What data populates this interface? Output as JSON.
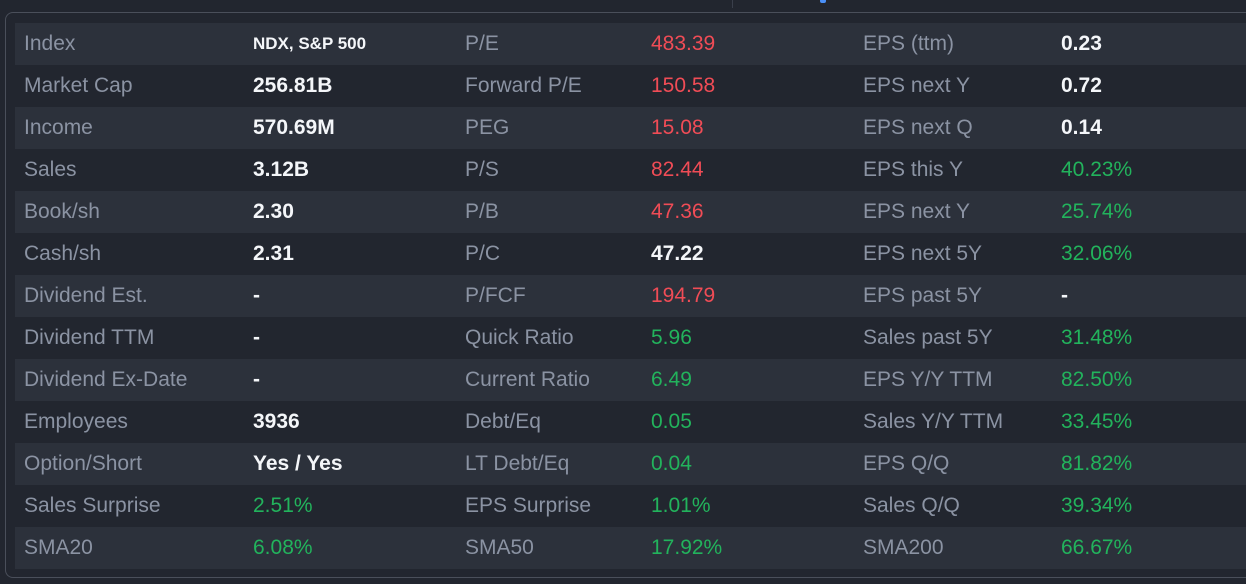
{
  "colors": {
    "negative": "#f04c56",
    "positive": "#22b35c",
    "neutral": "#f4f6f9",
    "label": "#8b93a3"
  },
  "rows": [
    [
      {
        "label": "Index",
        "value": "NDX, S&P 500",
        "tone": "white",
        "small": true
      },
      {
        "label": "P/E",
        "value": "483.39",
        "tone": "red"
      },
      {
        "label": "EPS (ttm)",
        "value": "0.23",
        "tone": "white"
      }
    ],
    [
      {
        "label": "Market Cap",
        "value": "256.81B",
        "tone": "white"
      },
      {
        "label": "Forward P/E",
        "value": "150.58",
        "tone": "red"
      },
      {
        "label": "EPS next Y",
        "value": "0.72",
        "tone": "white"
      }
    ],
    [
      {
        "label": "Income",
        "value": "570.69M",
        "tone": "white"
      },
      {
        "label": "PEG",
        "value": "15.08",
        "tone": "red"
      },
      {
        "label": "EPS next Q",
        "value": "0.14",
        "tone": "white"
      }
    ],
    [
      {
        "label": "Sales",
        "value": "3.12B",
        "tone": "white"
      },
      {
        "label": "P/S",
        "value": "82.44",
        "tone": "red"
      },
      {
        "label": "EPS this Y",
        "value": "40.23%",
        "tone": "green"
      }
    ],
    [
      {
        "label": "Book/sh",
        "value": "2.30",
        "tone": "white"
      },
      {
        "label": "P/B",
        "value": "47.36",
        "tone": "red"
      },
      {
        "label": "EPS next Y",
        "value": "25.74%",
        "tone": "green"
      }
    ],
    [
      {
        "label": "Cash/sh",
        "value": "2.31",
        "tone": "white"
      },
      {
        "label": "P/C",
        "value": "47.22",
        "tone": "white"
      },
      {
        "label": "EPS next 5Y",
        "value": "32.06%",
        "tone": "green"
      }
    ],
    [
      {
        "label": "Dividend Est.",
        "value": "-",
        "tone": "white"
      },
      {
        "label": "P/FCF",
        "value": "194.79",
        "tone": "red"
      },
      {
        "label": "EPS past 5Y",
        "value": "-",
        "tone": "white"
      }
    ],
    [
      {
        "label": "Dividend TTM",
        "value": "-",
        "tone": "white"
      },
      {
        "label": "Quick Ratio",
        "value": "5.96",
        "tone": "green"
      },
      {
        "label": "Sales past 5Y",
        "value": "31.48%",
        "tone": "green"
      }
    ],
    [
      {
        "label": "Dividend Ex-Date",
        "value": "-",
        "tone": "white"
      },
      {
        "label": "Current Ratio",
        "value": "6.49",
        "tone": "green"
      },
      {
        "label": "EPS Y/Y TTM",
        "value": "82.50%",
        "tone": "green"
      }
    ],
    [
      {
        "label": "Employees",
        "value": "3936",
        "tone": "white"
      },
      {
        "label": "Debt/Eq",
        "value": "0.05",
        "tone": "green"
      },
      {
        "label": "Sales Y/Y TTM",
        "value": "33.45%",
        "tone": "green"
      }
    ],
    [
      {
        "label": "Option/Short",
        "value": "Yes / Yes",
        "tone": "white"
      },
      {
        "label": "LT Debt/Eq",
        "value": "0.04",
        "tone": "green"
      },
      {
        "label": "EPS Q/Q",
        "value": "81.82%",
        "tone": "green"
      }
    ],
    [
      {
        "label": "Sales Surprise",
        "value": "2.51%",
        "tone": "green"
      },
      {
        "label": "EPS Surprise",
        "value": "1.01%",
        "tone": "green"
      },
      {
        "label": "Sales Q/Q",
        "value": "39.34%",
        "tone": "green"
      }
    ],
    [
      {
        "label": "SMA20",
        "value": "6.08%",
        "tone": "green"
      },
      {
        "label": "SMA50",
        "value": "17.92%",
        "tone": "green"
      },
      {
        "label": "SMA200",
        "value": "66.67%",
        "tone": "green"
      }
    ]
  ]
}
